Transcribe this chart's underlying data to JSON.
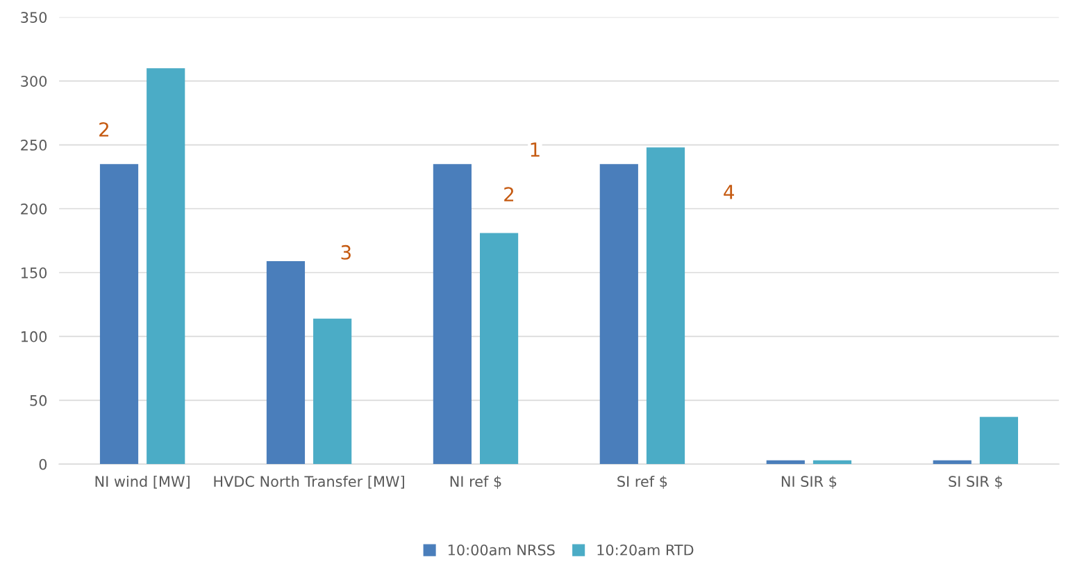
{
  "chart_data": {
    "type": "bar",
    "categories": [
      "NI wind [MW]",
      "HVDC North Transfer [MW]",
      "NI ref $",
      "SI ref $",
      "NI SIR $",
      "SI SIR $"
    ],
    "series": [
      {
        "name": "10:00am NRSS",
        "color": "#4a7ebb",
        "values": [
          235,
          159,
          235,
          235,
          3,
          3
        ]
      },
      {
        "name": "10:20am RTD",
        "color": "#4bacc6",
        "values": [
          310,
          114,
          181,
          248,
          3,
          37
        ]
      }
    ],
    "ylim": [
      0,
      350
    ],
    "yticks": [
      0,
      50,
      100,
      150,
      200,
      250,
      300,
      350
    ],
    "grid": "y",
    "legend": "bottom",
    "annotations": [
      "2",
      "3",
      "1",
      "2",
      "4"
    ]
  }
}
